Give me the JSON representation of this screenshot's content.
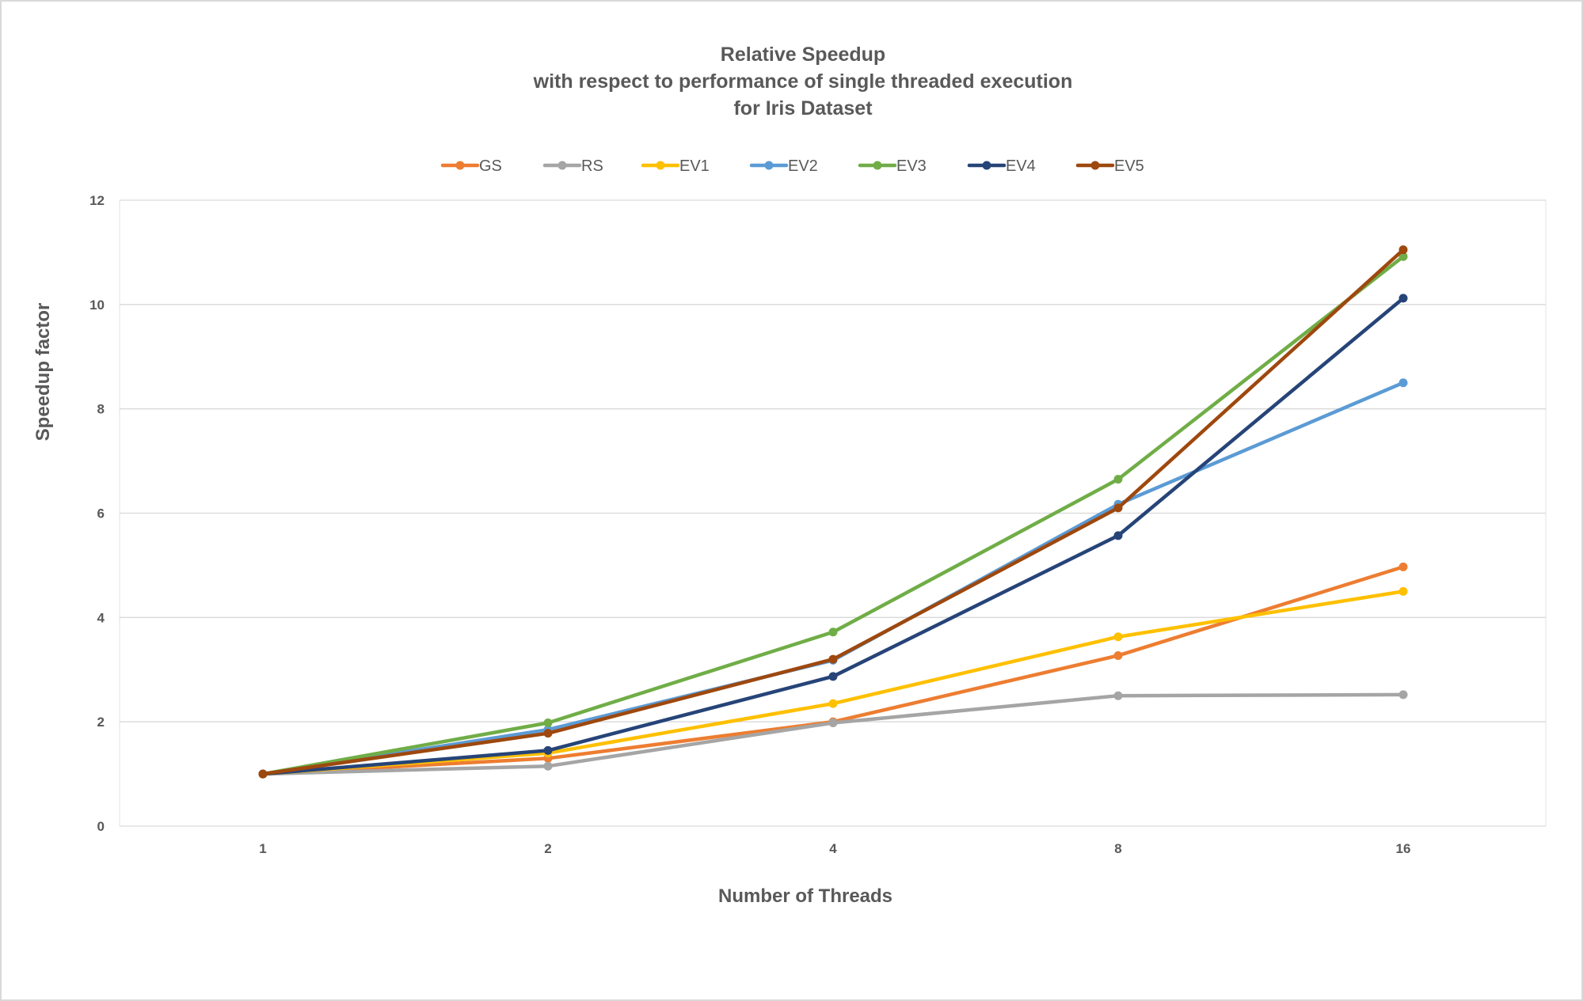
{
  "chart_data": {
    "type": "line",
    "title": [
      "Relative Speedup",
      "with respect to performance of single threaded execution",
      "for Iris Dataset"
    ],
    "xlabel": "Number of Threads",
    "ylabel": "Speedup factor",
    "categories": [
      "1",
      "2",
      "4",
      "8",
      "16"
    ],
    "yticks": [
      "0",
      "2",
      "4",
      "6",
      "8",
      "10",
      "12"
    ],
    "ylim": [
      0,
      12
    ],
    "grid": true,
    "legend_position": "top",
    "series": [
      {
        "name": "GS",
        "color": "#ed7d31",
        "values": [
          1.0,
          1.3,
          2.0,
          3.27,
          4.97
        ]
      },
      {
        "name": "RS",
        "color": "#a5a5a5",
        "values": [
          1.0,
          1.15,
          1.98,
          2.5,
          2.52
        ]
      },
      {
        "name": "EV1",
        "color": "#ffc000",
        "values": [
          1.0,
          1.4,
          2.35,
          3.63,
          4.5
        ]
      },
      {
        "name": "EV2",
        "color": "#5b9bd5",
        "values": [
          1.0,
          1.85,
          3.18,
          6.17,
          8.5
        ]
      },
      {
        "name": "EV3",
        "color": "#70ad47",
        "values": [
          1.0,
          1.98,
          3.72,
          6.65,
          10.92
        ]
      },
      {
        "name": "EV4",
        "color": "#264478",
        "values": [
          1.0,
          1.45,
          2.87,
          5.57,
          10.12
        ]
      },
      {
        "name": "EV5",
        "color": "#9e480e",
        "values": [
          1.0,
          1.78,
          3.2,
          6.1,
          11.05
        ]
      }
    ]
  }
}
